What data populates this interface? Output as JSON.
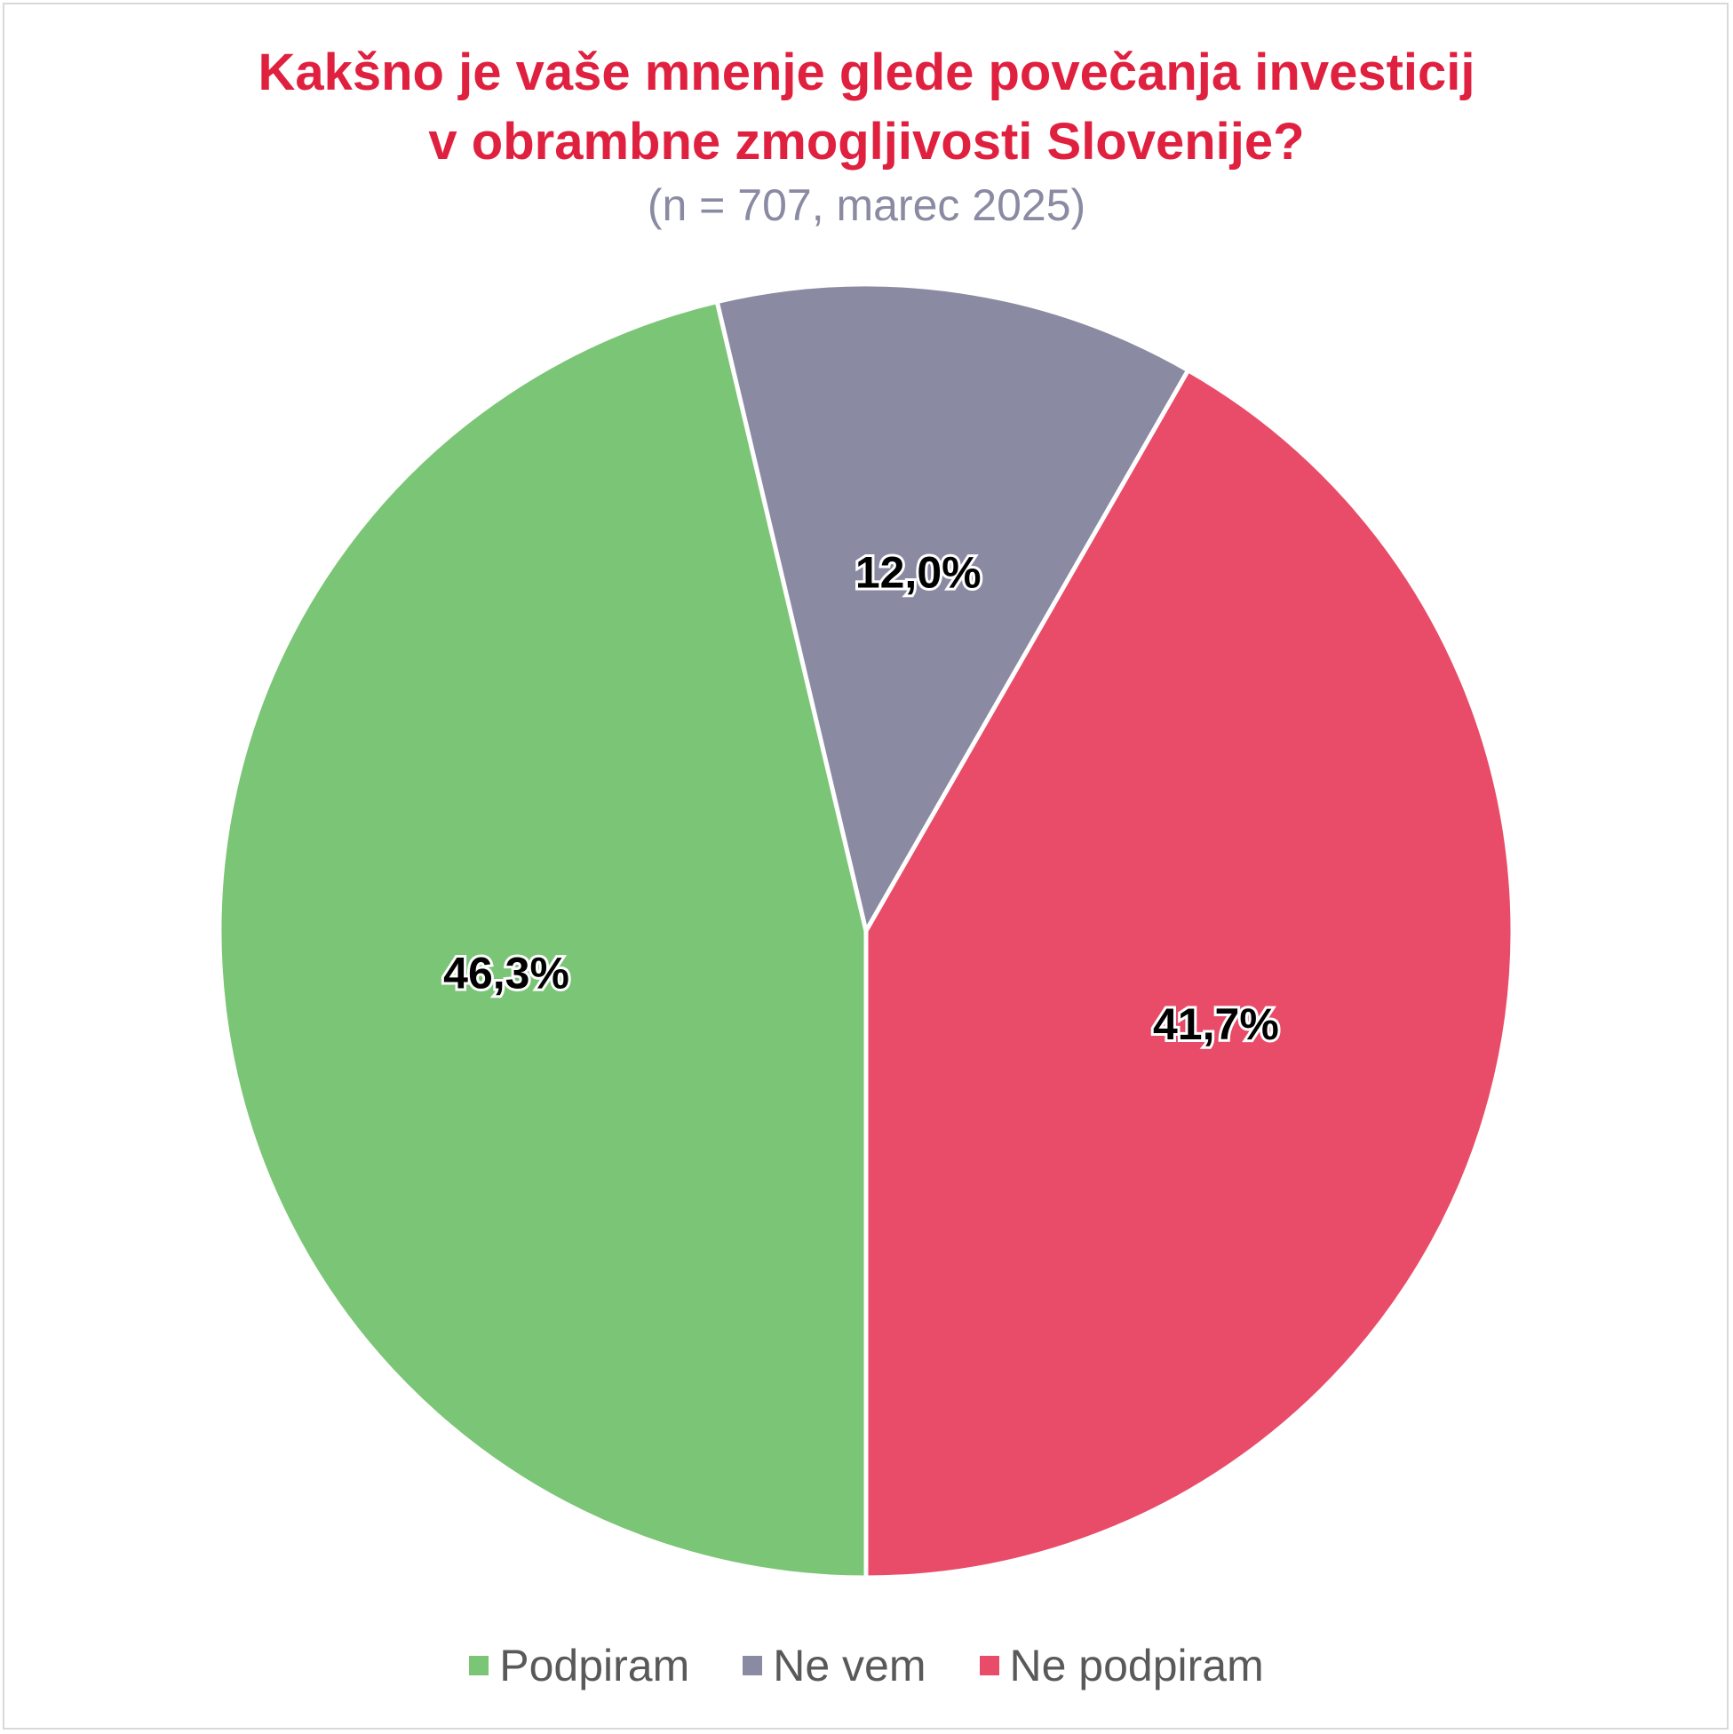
{
  "colors": {
    "title": "#e0203f",
    "subtitle": "#8a8aa3",
    "slice_border": "#ffffff",
    "label_text": "#000000",
    "label_outline": "#ffffff"
  },
  "chart_data": {
    "type": "pie",
    "title": "Kakšno je vaše mnenje glede povečanja investicij v obrambne zmogljivosti Slovenije?",
    "title_lines": [
      "Kakšno je vaše mnenje glede povečanja investicij",
      "v obrambne zmogljivosti Slovenije?"
    ],
    "subtitle": "(n = 707, marec 2025)",
    "legend_position": "bottom",
    "slices": [
      {
        "name": "Podpiram",
        "value": 46.3,
        "label": "46,3%",
        "color": "#7bc576"
      },
      {
        "name": "Ne vem",
        "value": 12.0,
        "label": "12,0%",
        "color": "#8a8aa3"
      },
      {
        "name": "Ne podpiram",
        "value": 41.7,
        "label": "41,7%",
        "color": "#e84c68"
      }
    ]
  }
}
